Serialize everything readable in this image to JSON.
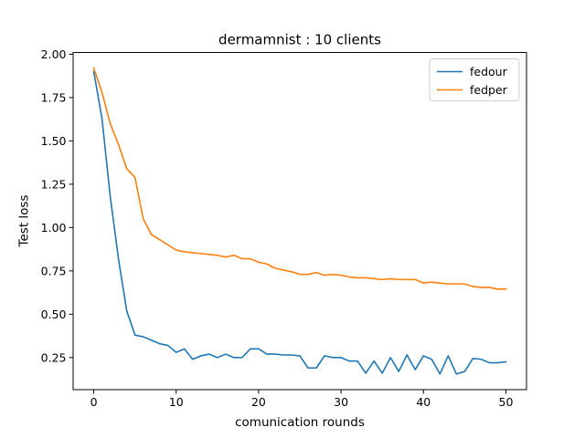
{
  "chart_data": {
    "type": "line",
    "title": "dermamnist : 10 clients",
    "xlabel": "comunication rounds",
    "ylabel": "Test loss",
    "xlim": [
      -2.5,
      52.5
    ],
    "ylim": [
      0.065,
      2.01
    ],
    "xticks": [
      0,
      10,
      20,
      30,
      40,
      50
    ],
    "xtick_labels": [
      "0",
      "10",
      "20",
      "30",
      "40",
      "50"
    ],
    "yticks": [
      0.25,
      0.5,
      0.75,
      1.0,
      1.25,
      1.5,
      1.75,
      2.0
    ],
    "ytick_labels": [
      "0.25",
      "0.50",
      "0.75",
      "1.00",
      "1.25",
      "1.50",
      "1.75",
      "2.00"
    ],
    "grid": false,
    "legend_position": "top-right",
    "x": [
      0,
      1,
      2,
      3,
      4,
      5,
      6,
      7,
      8,
      9,
      10,
      11,
      12,
      13,
      14,
      15,
      16,
      17,
      18,
      19,
      20,
      21,
      22,
      23,
      24,
      25,
      26,
      27,
      28,
      29,
      30,
      31,
      32,
      33,
      34,
      35,
      36,
      37,
      38,
      39,
      40,
      41,
      42,
      43,
      44,
      45,
      46,
      47,
      48,
      49,
      50
    ],
    "series": [
      {
        "name": "fedour",
        "color": "#1f77b4",
        "values": [
          1.9,
          1.63,
          1.18,
          0.82,
          0.52,
          0.38,
          0.37,
          0.35,
          0.33,
          0.32,
          0.28,
          0.3,
          0.24,
          0.26,
          0.27,
          0.25,
          0.27,
          0.25,
          0.25,
          0.3,
          0.3,
          0.27,
          0.27,
          0.265,
          0.265,
          0.26,
          0.19,
          0.19,
          0.26,
          0.25,
          0.25,
          0.23,
          0.23,
          0.16,
          0.23,
          0.16,
          0.25,
          0.17,
          0.265,
          0.18,
          0.26,
          0.24,
          0.155,
          0.26,
          0.155,
          0.17,
          0.245,
          0.24,
          0.22,
          0.22,
          0.225
        ]
      },
      {
        "name": "fedper",
        "color": "#ff7f0e",
        "values": [
          1.92,
          1.78,
          1.6,
          1.48,
          1.34,
          1.29,
          1.05,
          0.96,
          0.93,
          0.9,
          0.87,
          0.86,
          0.855,
          0.85,
          0.845,
          0.84,
          0.83,
          0.84,
          0.82,
          0.82,
          0.8,
          0.79,
          0.765,
          0.755,
          0.745,
          0.73,
          0.73,
          0.74,
          0.725,
          0.73,
          0.725,
          0.715,
          0.71,
          0.71,
          0.705,
          0.7,
          0.705,
          0.7,
          0.7,
          0.7,
          0.68,
          0.685,
          0.68,
          0.675,
          0.675,
          0.675,
          0.66,
          0.655,
          0.655,
          0.645,
          0.645
        ]
      }
    ]
  }
}
